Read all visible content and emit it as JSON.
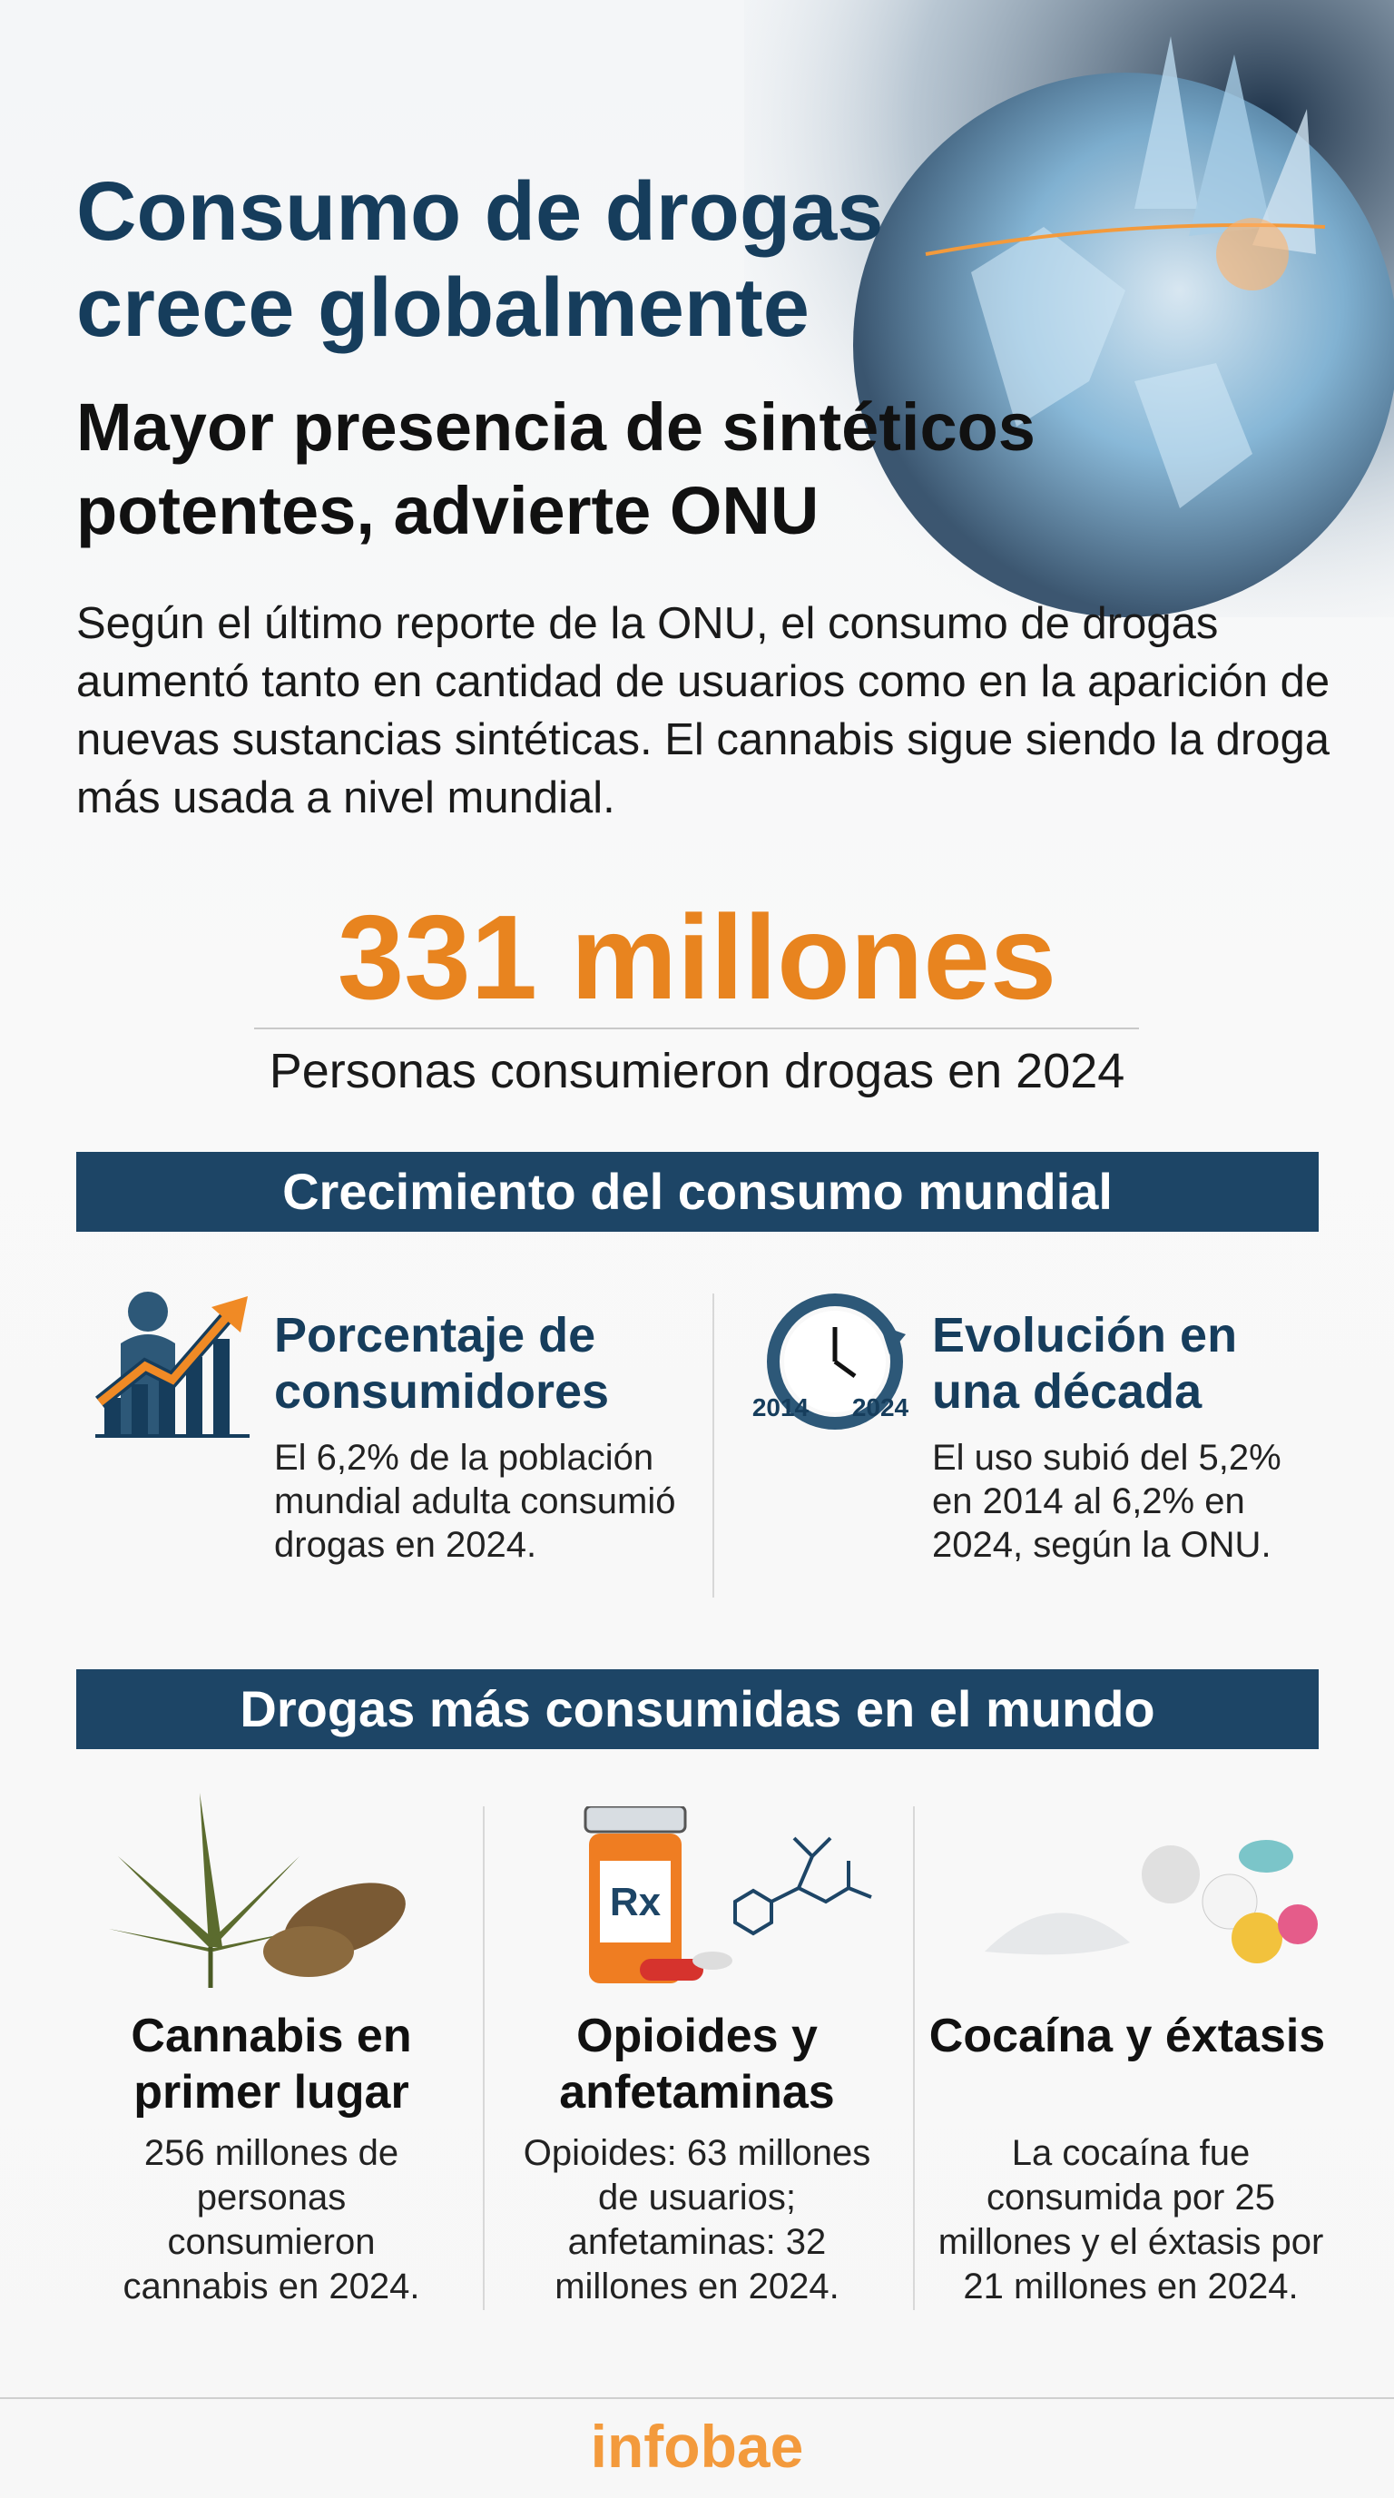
{
  "header": {
    "title": "Consumo de drogas crece globalmente",
    "subtitle": "Mayor presencia de sintéticos potentes, advierte ONU",
    "intro": "Según el último reporte de la ONU, el consumo de drogas aumentó tanto en cantidad de usuarios como en la aparición de nuevas sustancias sintéticas. El cannabis sigue siendo la droga más usada a nivel mundial."
  },
  "highlight": {
    "value": "331 millones",
    "caption": "Personas consumieron drogas en 2024"
  },
  "growth": {
    "heading": "Crecimiento del consumo mundial",
    "items": [
      {
        "title": "Porcentaje de consumidores",
        "text": "El 6,2% de la población mundial adulta consumió drogas en 2024."
      },
      {
        "icon_labels": [
          "2014",
          "2024"
        ],
        "title": "Evolución en una década",
        "text": "El uso subió del 5,2% en 2014 al 6,2% en 2024, según la ONU."
      }
    ]
  },
  "drugs": {
    "heading": "Drogas más consumidas en el mundo",
    "items": [
      {
        "title": "Cannabis en primer lugar",
        "text": "256 millones de personas consumieron cannabis en 2024."
      },
      {
        "icon_label": "Rx",
        "title": "Opioides y anfetaminas",
        "text": "Opioides: 63 millones de usuarios; anfetaminas: 32 millones en 2024."
      },
      {
        "title": "Cocaína y éxtasis",
        "text": "La cocaína fue consumida por 25 millones y el éxtasis por 21 millones en 2024."
      }
    ]
  },
  "footer": {
    "logo": "infobae"
  }
}
